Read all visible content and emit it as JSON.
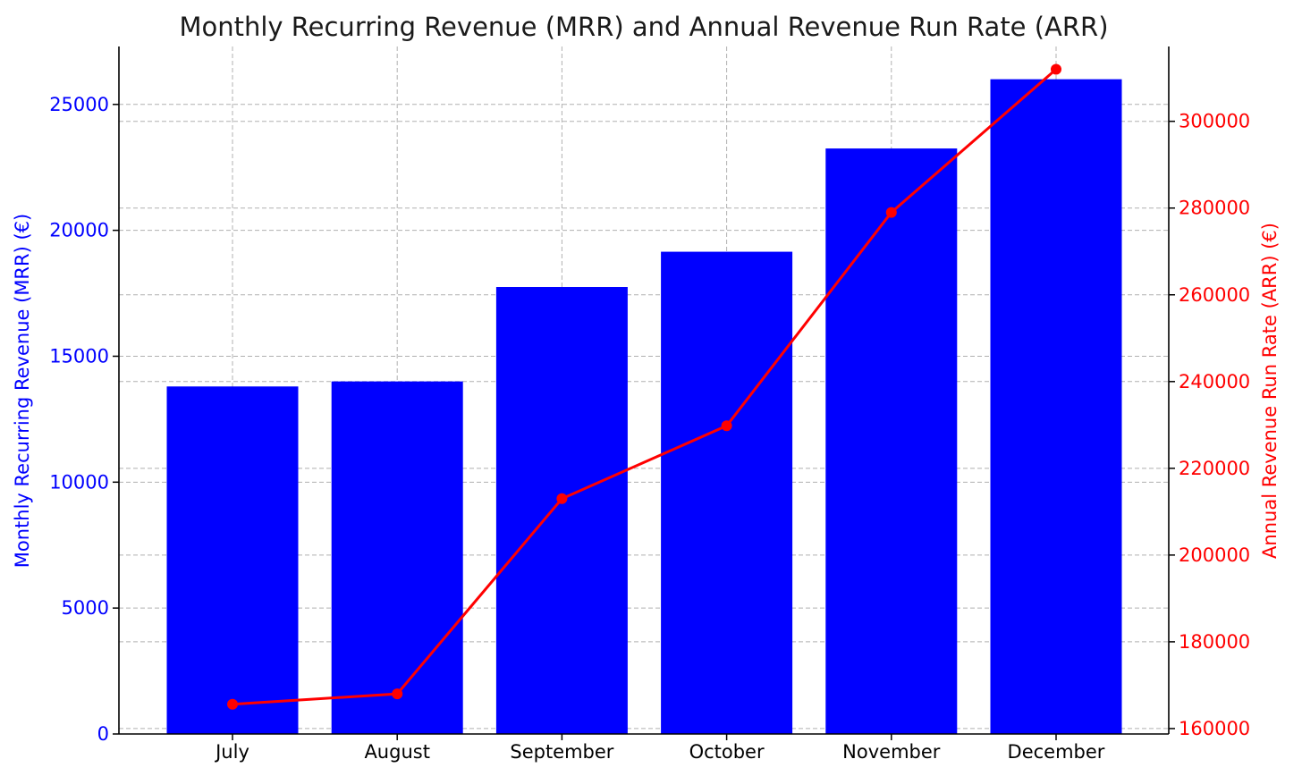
{
  "chart_data": {
    "type": "bar",
    "title": "Monthly Recurring Revenue (MRR) and Annual Revenue Run Rate (ARR)",
    "categories": [
      "July",
      "August",
      "September",
      "October",
      "November",
      "December"
    ],
    "series": [
      {
        "name": "Monthly Recurring Revenue (MRR) (€)",
        "type": "bar",
        "axis": "left",
        "color": "#0000ff",
        "values": [
          13800,
          14000,
          17750,
          19150,
          23250,
          26000
        ]
      },
      {
        "name": "Annual Revenue Run Rate (ARR) (€)",
        "type": "line",
        "axis": "right",
        "color": "#ff0000",
        "values": [
          165600,
          168000,
          213000,
          229800,
          279000,
          312000
        ]
      }
    ],
    "ylabel": "Monthly Recurring Revenue (MRR) (€)",
    "ylabel_right": "Annual Revenue Run Rate (ARR) (€)",
    "ylim": [
      0,
      27300
    ],
    "ylim_right": [
      158750,
      317250
    ],
    "yticks": [
      "0",
      "5000",
      "10000",
      "15000",
      "20000",
      "25000"
    ],
    "yticks_right": [
      "160000",
      "180000",
      "200000",
      "220000",
      "240000",
      "260000",
      "280000",
      "300000"
    ],
    "grid": true
  }
}
